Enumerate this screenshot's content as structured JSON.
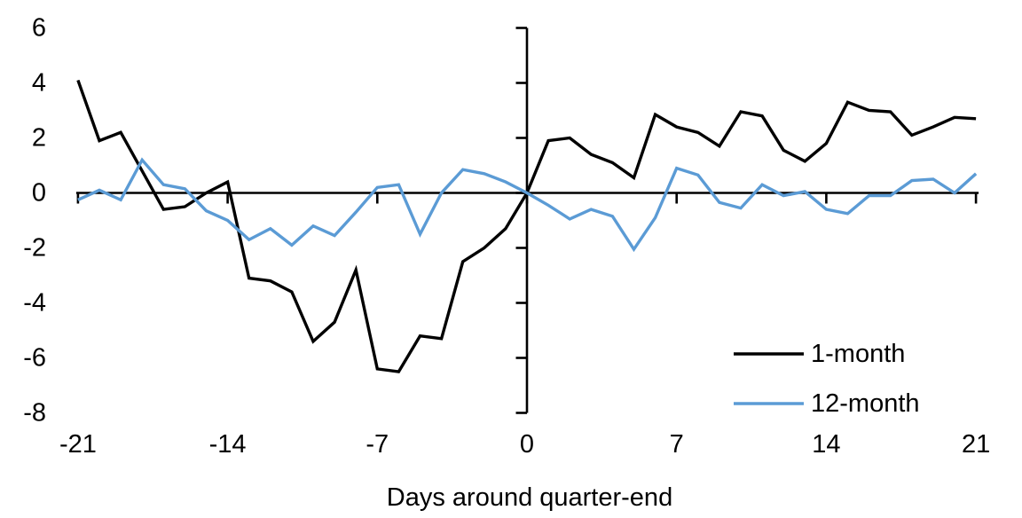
{
  "chart_data": {
    "type": "line",
    "title": "",
    "xlabel": "Days around quarter-end",
    "ylabel": "",
    "xlim": [
      -21,
      21
    ],
    "ylim": [
      -8,
      6
    ],
    "grid": false,
    "background_color": "#ffffff",
    "axis_color": "#000000",
    "legend_position": "inside-bottom-right",
    "x_ticks": [
      -21,
      -14,
      -7,
      0,
      7,
      14,
      21
    ],
    "x_tick_labels": [
      "-21",
      "-14",
      "-7",
      "0",
      "7",
      "14",
      "21"
    ],
    "y_ticks": [
      6,
      4,
      2,
      0,
      -2,
      -4,
      -6,
      -8
    ],
    "y_tick_labels": [
      "6",
      "4",
      "2",
      "0",
      "-2",
      "-4",
      "-6",
      "-8"
    ],
    "x": [
      -21,
      -20,
      -19,
      -18,
      -17,
      -16,
      -15,
      -14,
      -13,
      -12,
      -11,
      -10,
      -9,
      -8,
      -7,
      -6,
      -5,
      -4,
      -3,
      -2,
      -1,
      0,
      1,
      2,
      3,
      4,
      5,
      6,
      7,
      8,
      9,
      10,
      11,
      12,
      13,
      14,
      15,
      16,
      17,
      18,
      19,
      20,
      21
    ],
    "series": [
      {
        "name": "1-month",
        "color": "#000000",
        "values": [
          4.1,
          1.9,
          2.2,
          0.8,
          -0.6,
          -0.5,
          0.0,
          0.4,
          -3.1,
          -3.2,
          -3.6,
          -5.4,
          -4.7,
          -2.8,
          -6.4,
          -6.5,
          -5.2,
          -5.3,
          -2.5,
          -2.0,
          -1.3,
          0.0,
          1.9,
          2.0,
          1.4,
          1.1,
          0.55,
          2.85,
          2.4,
          2.2,
          1.7,
          2.95,
          2.8,
          1.55,
          1.15,
          1.8,
          3.3,
          3.0,
          2.95,
          2.1,
          2.4,
          2.75,
          2.7
        ]
      },
      {
        "name": "12-month",
        "color": "#5B9BD5",
        "values": [
          -0.25,
          0.1,
          -0.25,
          1.2,
          0.3,
          0.15,
          -0.65,
          -1.0,
          -1.7,
          -1.3,
          -1.9,
          -1.2,
          -1.55,
          -0.7,
          0.2,
          0.3,
          -1.5,
          0.0,
          0.85,
          0.7,
          0.4,
          0.0,
          -0.45,
          -0.95,
          -0.6,
          -0.85,
          -2.05,
          -0.9,
          0.9,
          0.65,
          -0.35,
          -0.55,
          0.3,
          -0.1,
          0.05,
          -0.6,
          -0.75,
          -0.1,
          -0.1,
          0.45,
          0.5,
          0.0,
          0.7
        ]
      }
    ]
  }
}
